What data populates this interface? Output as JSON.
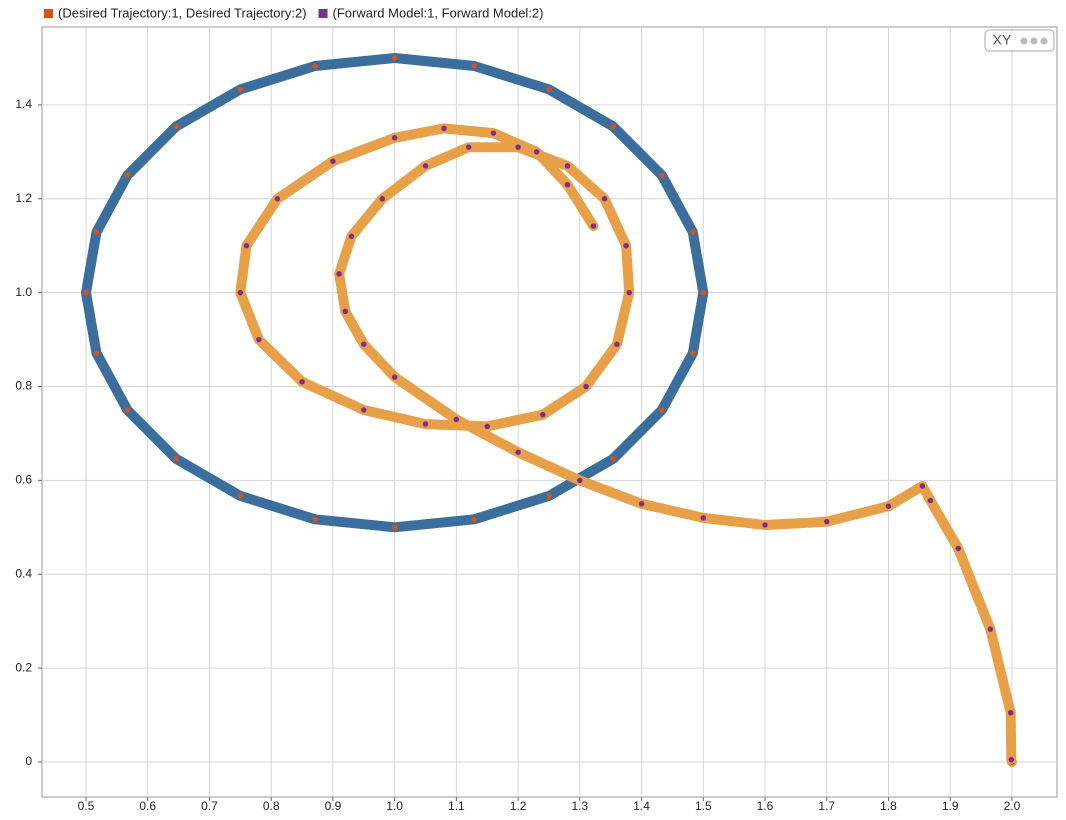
{
  "chart_data": {
    "type": "line",
    "xlim": [
      0.4287,
      2.073
    ],
    "ylim": [
      -0.0746,
      1.566
    ],
    "xticks": [
      0.5,
      0.6,
      0.7,
      0.8,
      0.9,
      {
        "value": 1,
        "label": "1.0"
      },
      1.1,
      1.2,
      1.3,
      1.4,
      1.5,
      1.6,
      1.7,
      1.8,
      1.9,
      {
        "value": 2,
        "label": "2.0"
      }
    ],
    "yticks": [
      0,
      0.2,
      0.4,
      0.6,
      0.8,
      {
        "value": 1,
        "label": "1.0"
      },
      1.2,
      1.4
    ],
    "grid": true,
    "view_label": "XY",
    "series": [
      {
        "name": "(Desired Trajectory:1, Desired Trajectory:2)",
        "color": "#d95319",
        "marker_edge": "#3b6e9c",
        "x": [
          1.5,
          1.483,
          1.433,
          1.354,
          1.25,
          1.129,
          1.0,
          0.871,
          0.75,
          0.646,
          0.567,
          0.517,
          0.5,
          0.517,
          0.567,
          0.646,
          0.75,
          0.871,
          1.0,
          1.129,
          1.25,
          1.354,
          1.433,
          1.483,
          1.5
        ],
        "values": [
          1.0,
          1.129,
          1.25,
          1.354,
          1.433,
          1.483,
          1.5,
          1.483,
          1.433,
          1.354,
          1.25,
          1.129,
          1.0,
          0.871,
          0.75,
          0.646,
          0.567,
          0.517,
          0.5,
          0.517,
          0.567,
          0.646,
          0.75,
          0.871,
          1.0
        ]
      },
      {
        "name": "(Forward Model:1, Forward Model:2)",
        "color": "#7e2f8e",
        "marker_edge": "#e8a048",
        "x": [
          2.0,
          1.999,
          1.998,
          1.965,
          1.913,
          1.868,
          1.855,
          1.8,
          1.7,
          1.6,
          1.5,
          1.4,
          1.3,
          1.2,
          1.1,
          1.0,
          0.95,
          0.92,
          0.91,
          0.93,
          0.98,
          1.05,
          1.12,
          1.2,
          1.28,
          1.34,
          1.375,
          1.38,
          1.36,
          1.31,
          1.24,
          1.15,
          1.05,
          0.95,
          0.85,
          0.78,
          0.75,
          0.76,
          0.81,
          0.9,
          1.0,
          1.08,
          1.16,
          1.23,
          1.28,
          1.322
        ],
        "values": [
          0.0,
          0.005,
          0.105,
          0.283,
          0.455,
          0.557,
          0.588,
          0.545,
          0.512,
          0.505,
          0.52,
          0.55,
          0.6,
          0.66,
          0.73,
          0.82,
          0.89,
          0.96,
          1.04,
          1.12,
          1.2,
          1.27,
          1.31,
          1.31,
          1.27,
          1.2,
          1.1,
          1.0,
          0.89,
          0.8,
          0.74,
          0.715,
          0.72,
          0.75,
          0.81,
          0.9,
          1.0,
          1.1,
          1.2,
          1.28,
          1.33,
          1.35,
          1.34,
          1.3,
          1.23,
          1.142
        ]
      }
    ]
  }
}
